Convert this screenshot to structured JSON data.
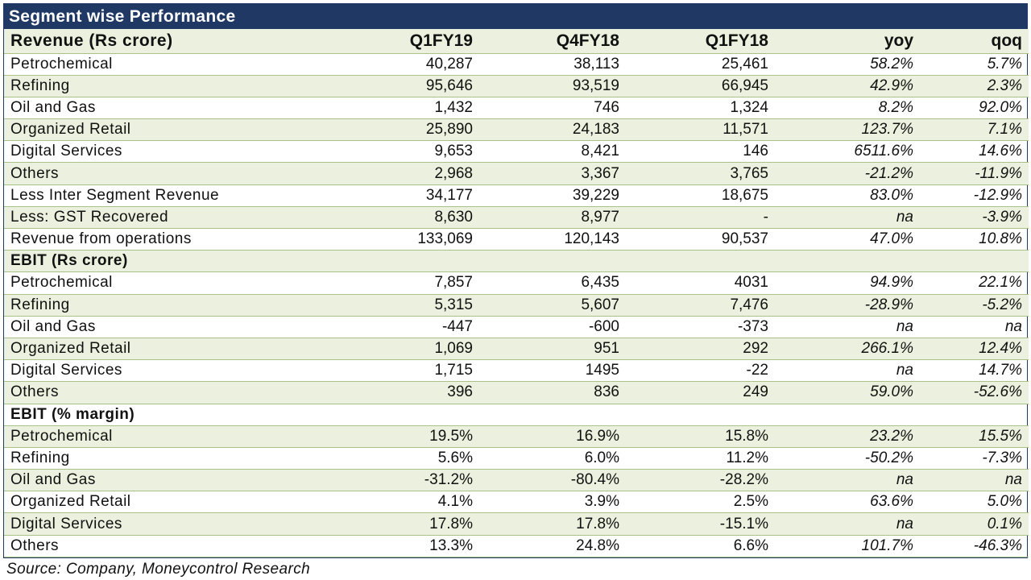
{
  "title": "Segment wise Performance",
  "header": [
    "Revenue (Rs crore)",
    "Q1FY19",
    "Q4FY18",
    "Q1FY18",
    "yoy",
    "qoq"
  ],
  "rows": [
    {
      "kind": "data",
      "cells": [
        "Petrochemical",
        "40,287",
        "38,113",
        "25,461",
        "58.2%",
        "5.7%"
      ]
    },
    {
      "kind": "data",
      "cells": [
        "Refining",
        "95,646",
        "93,519",
        "66,945",
        "42.9%",
        "2.3%"
      ]
    },
    {
      "kind": "data",
      "cells": [
        "Oil and Gas",
        "1,432",
        "746",
        "1,324",
        "8.2%",
        "92.0%"
      ]
    },
    {
      "kind": "data",
      "cells": [
        "Organized Retail",
        "25,890",
        "24,183",
        "11,571",
        "123.7%",
        "7.1%"
      ]
    },
    {
      "kind": "data",
      "cells": [
        "Digital Services",
        "9,653",
        "8,421",
        "146",
        "6511.6%",
        "14.6%"
      ]
    },
    {
      "kind": "data",
      "cells": [
        "Others",
        "2,968",
        "3,367",
        "3,765",
        "-21.2%",
        "-11.9%"
      ]
    },
    {
      "kind": "data",
      "cells": [
        "Less Inter Segment Revenue",
        "34,177",
        "39,229",
        "18,675",
        "83.0%",
        "-12.9%"
      ]
    },
    {
      "kind": "data",
      "cells": [
        "Less: GST Recovered",
        "8,630",
        "8,977",
        "-",
        "na",
        "-3.9%"
      ]
    },
    {
      "kind": "data",
      "cells": [
        "Revenue from operations",
        "133,069",
        "120,143",
        "90,537",
        "47.0%",
        "10.8%"
      ]
    },
    {
      "kind": "section",
      "cells": [
        "EBIT (Rs crore)",
        "",
        "",
        "",
        "",
        ""
      ]
    },
    {
      "kind": "data",
      "cells": [
        "Petrochemical",
        "7,857",
        "6,435",
        "4031",
        "94.9%",
        "22.1%"
      ]
    },
    {
      "kind": "data",
      "cells": [
        "Refining",
        "5,315",
        "5,607",
        "7,476",
        "-28.9%",
        "-5.2%"
      ]
    },
    {
      "kind": "data",
      "cells": [
        "Oil and Gas",
        "-447",
        "-600",
        "-373",
        "na",
        "na"
      ]
    },
    {
      "kind": "data",
      "cells": [
        "Organized Retail",
        "1,069",
        "951",
        "292",
        "266.1%",
        "12.4%"
      ]
    },
    {
      "kind": "data",
      "cells": [
        "Digital Services",
        "1,715",
        "1495",
        "-22",
        "na",
        "14.7%"
      ]
    },
    {
      "kind": "data",
      "cells": [
        "Others",
        "396",
        "836",
        "249",
        "59.0%",
        "-52.6%"
      ]
    },
    {
      "kind": "section",
      "cells": [
        "EBIT (% margin)",
        "",
        "",
        "",
        "",
        ""
      ]
    },
    {
      "kind": "data",
      "cells": [
        "Petrochemical",
        "19.5%",
        "16.9%",
        "15.8%",
        "23.2%",
        "15.5%"
      ]
    },
    {
      "kind": "data",
      "cells": [
        "Refining",
        "5.6%",
        "6.0%",
        "11.2%",
        "-50.2%",
        "-7.3%"
      ]
    },
    {
      "kind": "data",
      "cells": [
        "Oil and Gas",
        "-31.2%",
        "-80.4%",
        "-28.2%",
        "na",
        "na"
      ]
    },
    {
      "kind": "data",
      "cells": [
        "Organized Retail",
        "4.1%",
        "3.9%",
        "2.5%",
        "63.6%",
        "5.0%"
      ]
    },
    {
      "kind": "data",
      "cells": [
        "Digital Services",
        "17.8%",
        "17.8%",
        "-15.1%",
        "na",
        "0.1%"
      ]
    },
    {
      "kind": "data",
      "cells": [
        "Others",
        "13.3%",
        "24.8%",
        "6.6%",
        "101.7%",
        "-46.3%"
      ]
    }
  ],
  "source": "Source: Company, Moneycontrol Research",
  "colors": {
    "title_bg": "#1f3864",
    "band": "#ebf1de",
    "rule": "#a9c28a"
  }
}
